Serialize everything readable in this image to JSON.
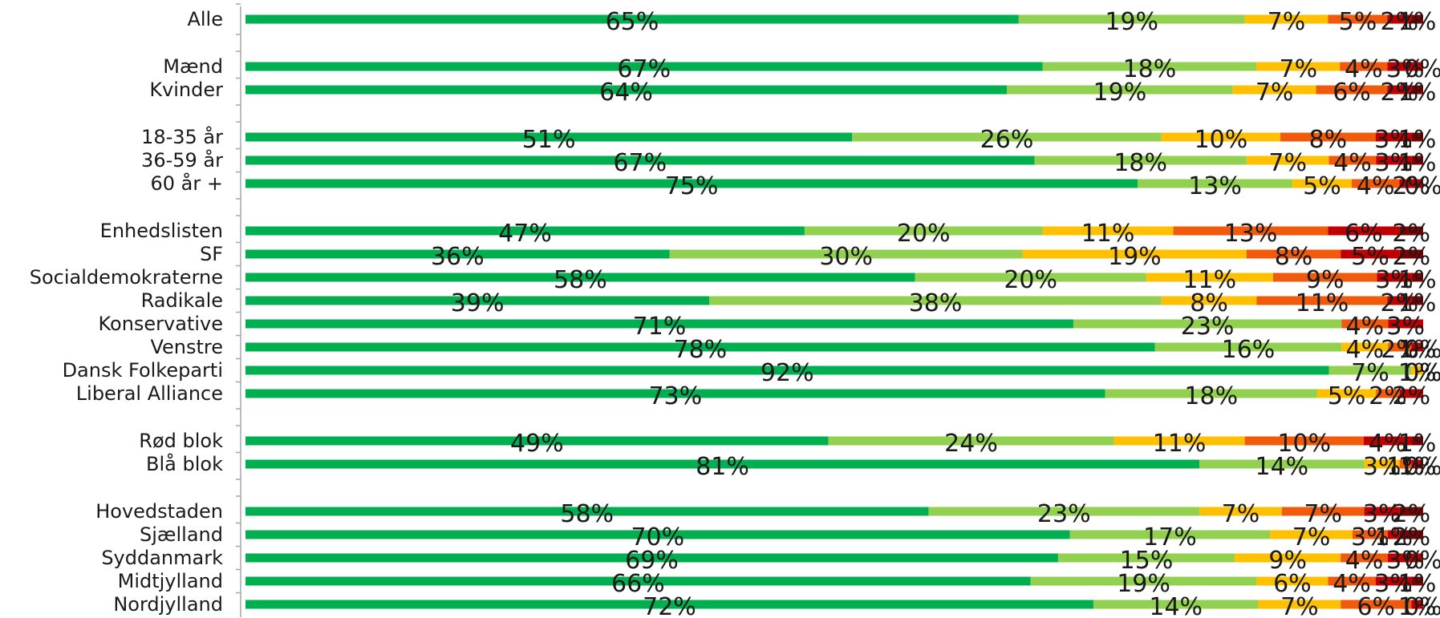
{
  "chart_data": {
    "type": "bar",
    "orientation": "horizontal",
    "stacked": "percent",
    "title": "",
    "xlabel": "",
    "ylabel": "",
    "legend": "none",
    "grid": false,
    "colors": [
      "#00b050",
      "#92d050",
      "#ffc000",
      "#f05a0a",
      "#c00000",
      "#7f0000"
    ],
    "rows": [
      {
        "label": "Alle",
        "values": [
          65,
          19,
          7,
          5,
          2,
          1
        ],
        "value_labels": [
          "65%",
          "19%",
          "7%",
          "5%",
          "2%",
          "1%"
        ]
      },
      {
        "label": "Mænd",
        "values": [
          67,
          18,
          7,
          4,
          3,
          0
        ],
        "value_labels": [
          "67%",
          "18%",
          "7%",
          "4%",
          "3%",
          "0%"
        ]
      },
      {
        "label": "Kvinder",
        "values": [
          64,
          19,
          7,
          6,
          2,
          1
        ],
        "value_labels": [
          "64%",
          "19%",
          "7%",
          "6%",
          "2%",
          "1%"
        ]
      },
      {
        "label": "18-35 år",
        "values": [
          51,
          26,
          10,
          8,
          3,
          1
        ],
        "value_labels": [
          "51%",
          "26%",
          "10%",
          "8%",
          "3%",
          "1%"
        ]
      },
      {
        "label": "36-59 år",
        "values": [
          67,
          18,
          7,
          4,
          3,
          1
        ],
        "value_labels": [
          "67%",
          "18%",
          "7%",
          "4%",
          "3%",
          "1%"
        ]
      },
      {
        "label": "60 år +",
        "values": [
          75,
          13,
          5,
          4,
          2,
          0
        ],
        "value_labels": [
          "75%",
          "13%",
          "5%",
          "4%",
          "2%",
          "0%"
        ]
      },
      {
        "label": "Enhedslisten",
        "values": [
          47,
          20,
          11,
          13,
          6,
          2
        ],
        "value_labels": [
          "47%",
          "20%",
          "11%",
          "13%",
          "6%",
          "2%"
        ]
      },
      {
        "label": "SF",
        "values": [
          36,
          30,
          19,
          8,
          5,
          2
        ],
        "value_labels": [
          "36%",
          "30%",
          "19%",
          "8%",
          "5%",
          "2%"
        ]
      },
      {
        "label": "Socialdemokraterne",
        "values": [
          58,
          20,
          11,
          9,
          3,
          1
        ],
        "value_labels": [
          "58%",
          "20%",
          "11%",
          "9%",
          "3%",
          "1%"
        ]
      },
      {
        "label": "Radikale",
        "values": [
          39,
          38,
          8,
          11,
          2,
          1
        ],
        "value_labels": [
          "39%",
          "38%",
          "8%",
          "11%",
          "2%",
          "1%"
        ]
      },
      {
        "label": "Konservative",
        "values": [
          71,
          23,
          0,
          4,
          3,
          0
        ],
        "value_labels": [
          "71%",
          "23%",
          "",
          "4%",
          "3%",
          ""
        ]
      },
      {
        "label": "Venstre",
        "values": [
          78,
          16,
          4,
          2,
          1,
          0
        ],
        "value_labels": [
          "78%",
          "16%",
          "4%",
          "2%",
          "1%",
          "0%"
        ]
      },
      {
        "label": "Dansk Folkeparti",
        "values": [
          92,
          7,
          1,
          0,
          0,
          0
        ],
        "value_labels": [
          "92%",
          "7%",
          "1%",
          "0%",
          "0%",
          "0%"
        ]
      },
      {
        "label": "Liberal Alliance",
        "values": [
          73,
          18,
          5,
          2,
          2,
          0
        ],
        "value_labels": [
          "73%",
          "18%",
          "5%",
          "2%",
          "2%",
          ""
        ]
      },
      {
        "label": "Rød blok",
        "values": [
          49,
          24,
          11,
          10,
          4,
          1
        ],
        "value_labels": [
          "49%",
          "24%",
          "11%",
          "10%",
          "4%",
          "1%"
        ]
      },
      {
        "label": "Blå blok",
        "values": [
          81,
          14,
          3,
          1,
          1,
          0
        ],
        "value_labels": [
          "81%",
          "14%",
          "3%",
          "1%",
          "1%",
          "0%"
        ]
      },
      {
        "label": "Hovedstaden",
        "values": [
          58,
          23,
          7,
          7,
          3,
          2
        ],
        "value_labels": [
          "58%",
          "23%",
          "7%",
          "7%",
          "3%",
          "2%"
        ]
      },
      {
        "label": "Sjælland",
        "values": [
          70,
          17,
          7,
          3,
          1,
          2
        ],
        "value_labels": [
          "70%",
          "17%",
          "7%",
          "3%",
          "1%",
          "2%"
        ]
      },
      {
        "label": "Syddanmark",
        "values": [
          69,
          15,
          9,
          4,
          3,
          0
        ],
        "value_labels": [
          "69%",
          "15%",
          "9%",
          "4%",
          "3%",
          "0%"
        ]
      },
      {
        "label": "Midtjylland",
        "values": [
          66,
          19,
          6,
          4,
          3,
          1
        ],
        "value_labels": [
          "66%",
          "19%",
          "6%",
          "4%",
          "3%",
          "1%"
        ]
      },
      {
        "label": "Nordjylland",
        "values": [
          72,
          14,
          7,
          6,
          1,
          0
        ],
        "value_labels": [
          "72%",
          "14%",
          "7%",
          "6%",
          "1%",
          "0%"
        ]
      }
    ]
  }
}
